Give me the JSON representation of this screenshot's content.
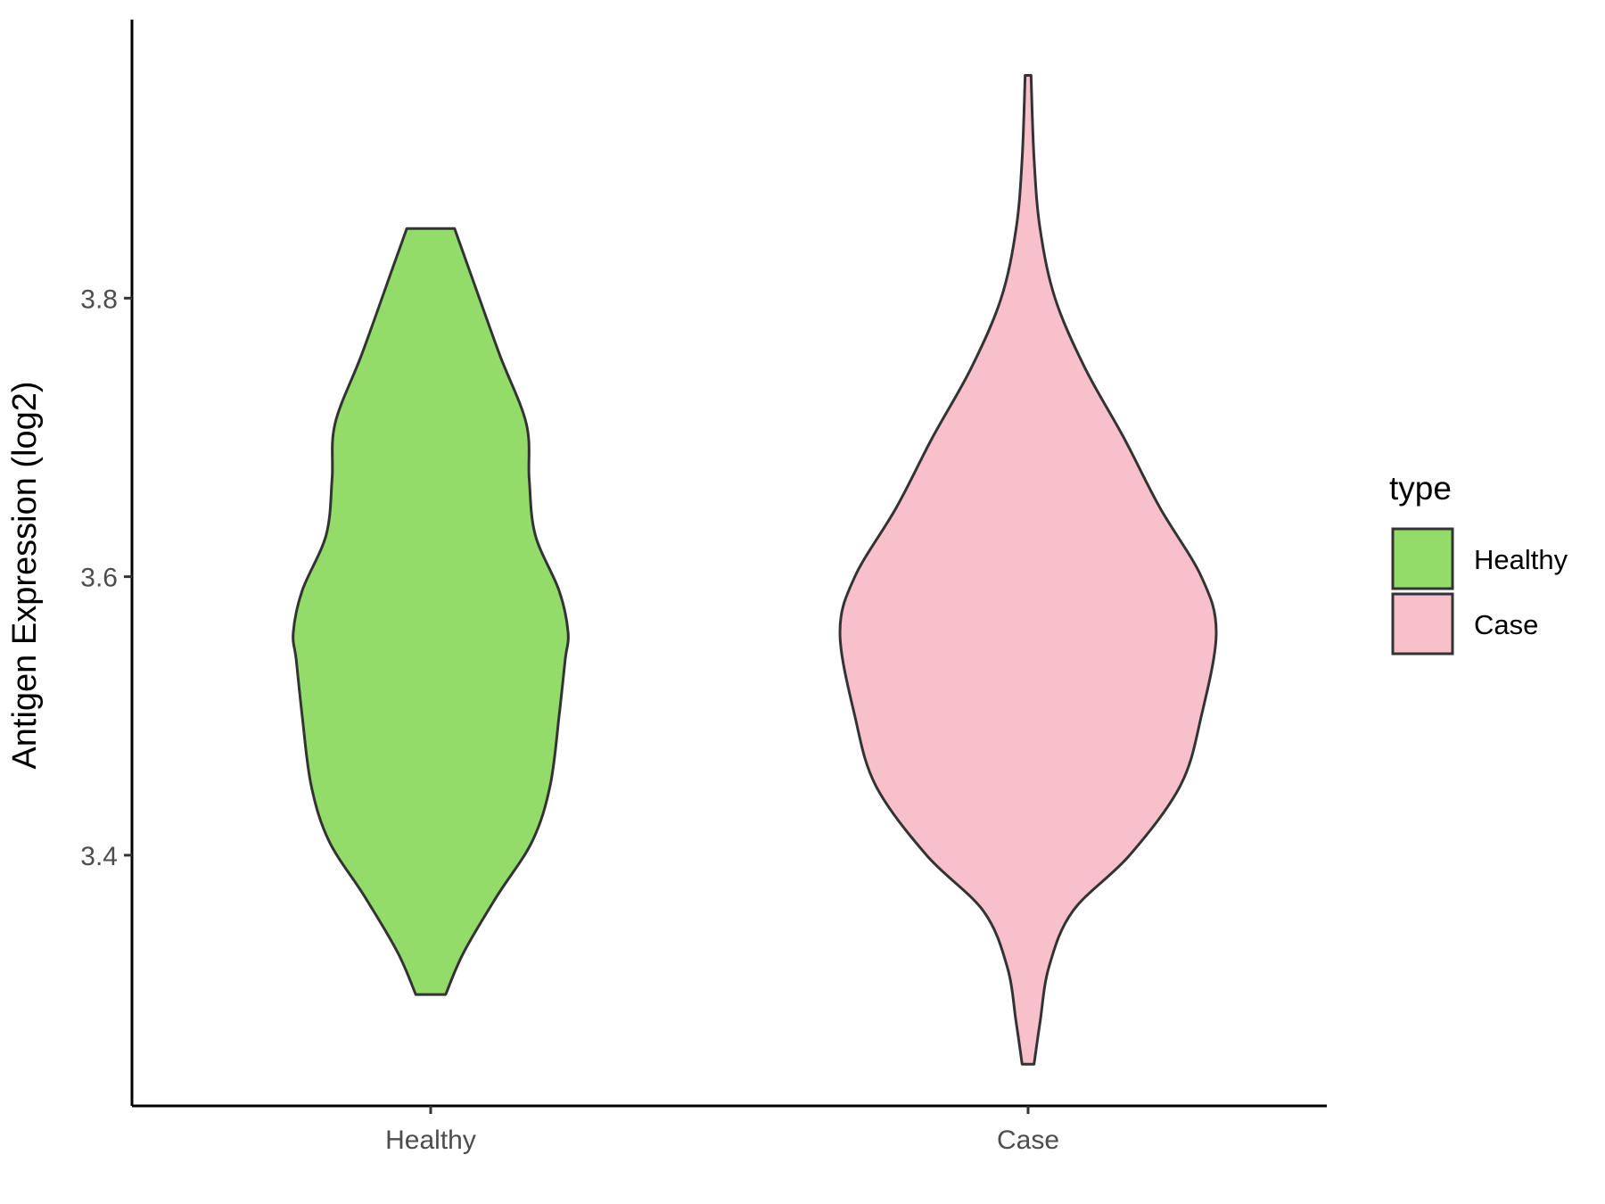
{
  "chart_data": {
    "type": "violin",
    "title": "",
    "xlabel": "",
    "ylabel": "Antigen Expression (log2)",
    "categories": [
      "Healthy",
      "Case"
    ],
    "ylim": [
      3.22,
      4.0
    ],
    "yticks": [
      3.4,
      3.6,
      3.8
    ],
    "ytick_labels": [
      "3.4",
      "3.6",
      "3.8"
    ],
    "grid": false,
    "legend": {
      "title": "type",
      "position": "right",
      "entries": [
        "Healthy",
        "Case"
      ]
    },
    "colors": {
      "Healthy": "#93dc6a",
      "Case": "#f7c0cb",
      "outline": "#333333"
    },
    "series": [
      {
        "name": "Healthy",
        "ymin": 3.3,
        "ymax": 3.85,
        "profile": [
          {
            "y": 3.3,
            "w": 0.05
          },
          {
            "y": 3.33,
            "w": 0.11
          },
          {
            "y": 3.37,
            "w": 0.22
          },
          {
            "y": 3.41,
            "w": 0.34
          },
          {
            "y": 3.45,
            "w": 0.4
          },
          {
            "y": 3.5,
            "w": 0.43
          },
          {
            "y": 3.54,
            "w": 0.45
          },
          {
            "y": 3.56,
            "w": 0.46
          },
          {
            "y": 3.59,
            "w": 0.43
          },
          {
            "y": 3.63,
            "w": 0.35
          },
          {
            "y": 3.67,
            "w": 0.33
          },
          {
            "y": 3.71,
            "w": 0.32
          },
          {
            "y": 3.76,
            "w": 0.23
          },
          {
            "y": 3.82,
            "w": 0.13
          },
          {
            "y": 3.85,
            "w": 0.08
          }
        ]
      },
      {
        "name": "Case",
        "ymin": 3.25,
        "ymax": 3.96,
        "profile": [
          {
            "y": 3.25,
            "w": 0.02
          },
          {
            "y": 3.28,
            "w": 0.04
          },
          {
            "y": 3.32,
            "w": 0.07
          },
          {
            "y": 3.36,
            "w": 0.15
          },
          {
            "y": 3.4,
            "w": 0.34
          },
          {
            "y": 3.45,
            "w": 0.51
          },
          {
            "y": 3.5,
            "w": 0.58
          },
          {
            "y": 3.56,
            "w": 0.63
          },
          {
            "y": 3.6,
            "w": 0.58
          },
          {
            "y": 3.65,
            "w": 0.44
          },
          {
            "y": 3.7,
            "w": 0.32
          },
          {
            "y": 3.75,
            "w": 0.19
          },
          {
            "y": 3.8,
            "w": 0.09
          },
          {
            "y": 3.85,
            "w": 0.04
          },
          {
            "y": 3.9,
            "w": 0.02
          },
          {
            "y": 3.96,
            "w": 0.01
          }
        ]
      }
    ]
  }
}
